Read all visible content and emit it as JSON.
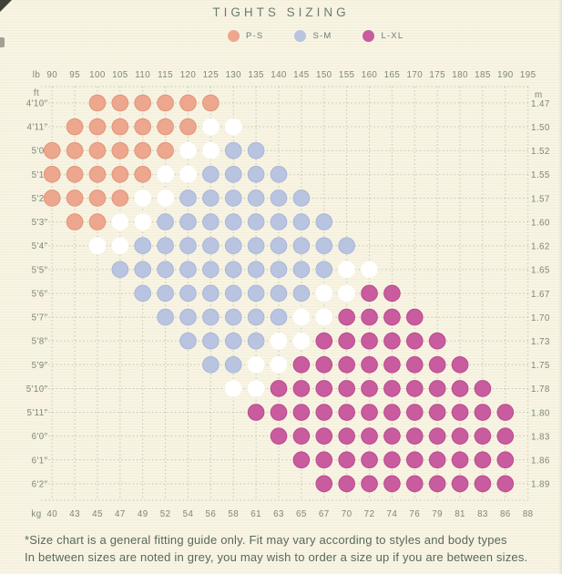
{
  "chart_data": {
    "type": "scatter",
    "title": "TIGHTS SIZING",
    "legend": [
      {
        "label": "P-S"
      },
      {
        "label": "S-M"
      },
      {
        "label": "L-XL"
      }
    ],
    "colors": {
      "background": "#f8f4e2",
      "grid": "#adb5a4",
      "title_text": "#6b7c71",
      "tick_text": "#7e8679",
      "footnote_text": "#57685c",
      "sizes": {
        "P-S": {
          "fill": "#eda78e",
          "ring": "#e29478"
        },
        "S-M": {
          "fill": "#b9c4e1",
          "ring": "#aab6d8"
        },
        "L-XL": {
          "fill": "#c95c9e",
          "ring": "#ba4a8f"
        },
        "in-between": {
          "fill": "#ffffff",
          "ring": "#ffffff"
        }
      }
    },
    "axis_top": {
      "unit": "lb",
      "ticks": [
        90,
        95,
        100,
        105,
        110,
        115,
        120,
        125,
        130,
        135,
        140,
        145,
        150,
        155,
        160,
        165,
        170,
        175,
        180,
        185,
        190,
        195
      ]
    },
    "axis_bottom": {
      "unit": "kg",
      "ticks": [
        40,
        43,
        45,
        47,
        49,
        52,
        54,
        56,
        58,
        61,
        63,
        65,
        67,
        70,
        72,
        74,
        76,
        79,
        81,
        83,
        86,
        88
      ]
    },
    "axis_left": {
      "unit": "ft"
    },
    "axis_right": {
      "unit": "m"
    },
    "rows": [
      {
        "ft": "4'10\"",
        "m": "1.47",
        "dots": [
          {
            "size": "P-S",
            "lb": [
              100,
              105,
              110,
              115,
              120,
              125
            ]
          }
        ]
      },
      {
        "ft": "4'11\"",
        "m": "1.50",
        "dots": [
          {
            "size": "P-S",
            "lb": [
              95,
              100,
              105,
              110,
              115,
              120
            ]
          },
          {
            "size": "in-between",
            "lb": [
              125,
              130
            ]
          }
        ]
      },
      {
        "ft": "5'0\"",
        "m": "1.52",
        "dots": [
          {
            "size": "P-S",
            "lb": [
              90,
              95,
              100,
              105,
              110,
              115
            ]
          },
          {
            "size": "in-between",
            "lb": [
              120,
              125
            ]
          },
          {
            "size": "S-M",
            "lb": [
              130,
              135
            ]
          }
        ]
      },
      {
        "ft": "5'1\"",
        "m": "1.55",
        "dots": [
          {
            "size": "P-S",
            "lb": [
              90,
              95,
              100,
              105,
              110
            ]
          },
          {
            "size": "in-between",
            "lb": [
              115,
              120
            ]
          },
          {
            "size": "S-M",
            "lb": [
              125,
              130,
              135,
              140
            ]
          }
        ]
      },
      {
        "ft": "5'2\"",
        "m": "1.57",
        "dots": [
          {
            "size": "P-S",
            "lb": [
              90,
              95,
              100,
              105
            ]
          },
          {
            "size": "in-between",
            "lb": [
              110,
              115
            ]
          },
          {
            "size": "S-M",
            "lb": [
              120,
              125,
              130,
              135,
              140,
              145
            ]
          }
        ]
      },
      {
        "ft": "5'3\"",
        "m": "1.60",
        "dots": [
          {
            "size": "P-S",
            "lb": [
              95,
              100
            ]
          },
          {
            "size": "in-between",
            "lb": [
              105,
              110
            ]
          },
          {
            "size": "S-M",
            "lb": [
              115,
              120,
              125,
              130,
              135,
              140,
              145,
              150
            ]
          }
        ]
      },
      {
        "ft": "5'4\"",
        "m": "1.62",
        "dots": [
          {
            "size": "in-between",
            "lb": [
              100,
              105
            ]
          },
          {
            "size": "S-M",
            "lb": [
              110,
              115,
              120,
              125,
              130,
              135,
              140,
              145,
              150,
              155
            ]
          }
        ]
      },
      {
        "ft": "5'5\"",
        "m": "1.65",
        "dots": [
          {
            "size": "S-M",
            "lb": [
              105,
              110,
              115,
              120,
              125,
              130,
              135,
              140,
              145,
              150
            ]
          },
          {
            "size": "in-between",
            "lb": [
              155,
              160
            ]
          }
        ]
      },
      {
        "ft": "5'6\"",
        "m": "1.67",
        "dots": [
          {
            "size": "S-M",
            "lb": [
              110,
              115,
              120,
              125,
              130,
              135,
              140,
              145
            ]
          },
          {
            "size": "in-between",
            "lb": [
              150,
              155
            ]
          },
          {
            "size": "L-XL",
            "lb": [
              160,
              165
            ]
          }
        ]
      },
      {
        "ft": "5'7\"",
        "m": "1.70",
        "dots": [
          {
            "size": "S-M",
            "lb": [
              115,
              120,
              125,
              130,
              135,
              140
            ]
          },
          {
            "size": "in-between",
            "lb": [
              145,
              150
            ]
          },
          {
            "size": "L-XL",
            "lb": [
              155,
              160,
              165,
              170
            ]
          }
        ]
      },
      {
        "ft": "5'8\"",
        "m": "1.73",
        "dots": [
          {
            "size": "S-M",
            "lb": [
              120,
              125,
              130,
              135
            ]
          },
          {
            "size": "in-between",
            "lb": [
              140,
              145
            ]
          },
          {
            "size": "L-XL",
            "lb": [
              150,
              155,
              160,
              165,
              170,
              175
            ]
          }
        ]
      },
      {
        "ft": "5'9\"",
        "m": "1.75",
        "dots": [
          {
            "size": "S-M",
            "lb": [
              125,
              130
            ]
          },
          {
            "size": "in-between",
            "lb": [
              135,
              140
            ]
          },
          {
            "size": "L-XL",
            "lb": [
              145,
              150,
              155,
              160,
              165,
              170,
              175,
              180
            ]
          }
        ]
      },
      {
        "ft": "5'10\"",
        "m": "1.78",
        "dots": [
          {
            "size": "in-between",
            "lb": [
              130,
              135
            ]
          },
          {
            "size": "L-XL",
            "lb": [
              140,
              145,
              150,
              155,
              160,
              165,
              170,
              175,
              180,
              185
            ]
          }
        ]
      },
      {
        "ft": "5'11\"",
        "m": "1.80",
        "dots": [
          {
            "size": "L-XL",
            "lb": [
              135,
              140,
              145,
              150,
              155,
              160,
              165,
              170,
              175,
              180,
              185,
              190
            ]
          }
        ]
      },
      {
        "ft": "6'0\"",
        "m": "1.83",
        "dots": [
          {
            "size": "L-XL",
            "lb": [
              140,
              145,
              150,
              155,
              160,
              165,
              170,
              175,
              180,
              185,
              190
            ]
          }
        ]
      },
      {
        "ft": "6'1\"",
        "m": "1.86",
        "dots": [
          {
            "size": "L-XL",
            "lb": [
              145,
              150,
              155,
              160,
              165,
              170,
              175,
              180,
              185,
              190
            ]
          }
        ]
      },
      {
        "ft": "6'2\"",
        "m": "1.89",
        "dots": [
          {
            "size": "L-XL",
            "lb": [
              150,
              155,
              160,
              165,
              170,
              175,
              180,
              185,
              190
            ]
          }
        ]
      }
    ]
  },
  "footnote": {
    "line1": "*Size chart is a general fitting guide only. Fit may vary according to styles and body types",
    "line2": "In between sizes are noted in grey, you may wish to order a size up if you are between sizes."
  }
}
